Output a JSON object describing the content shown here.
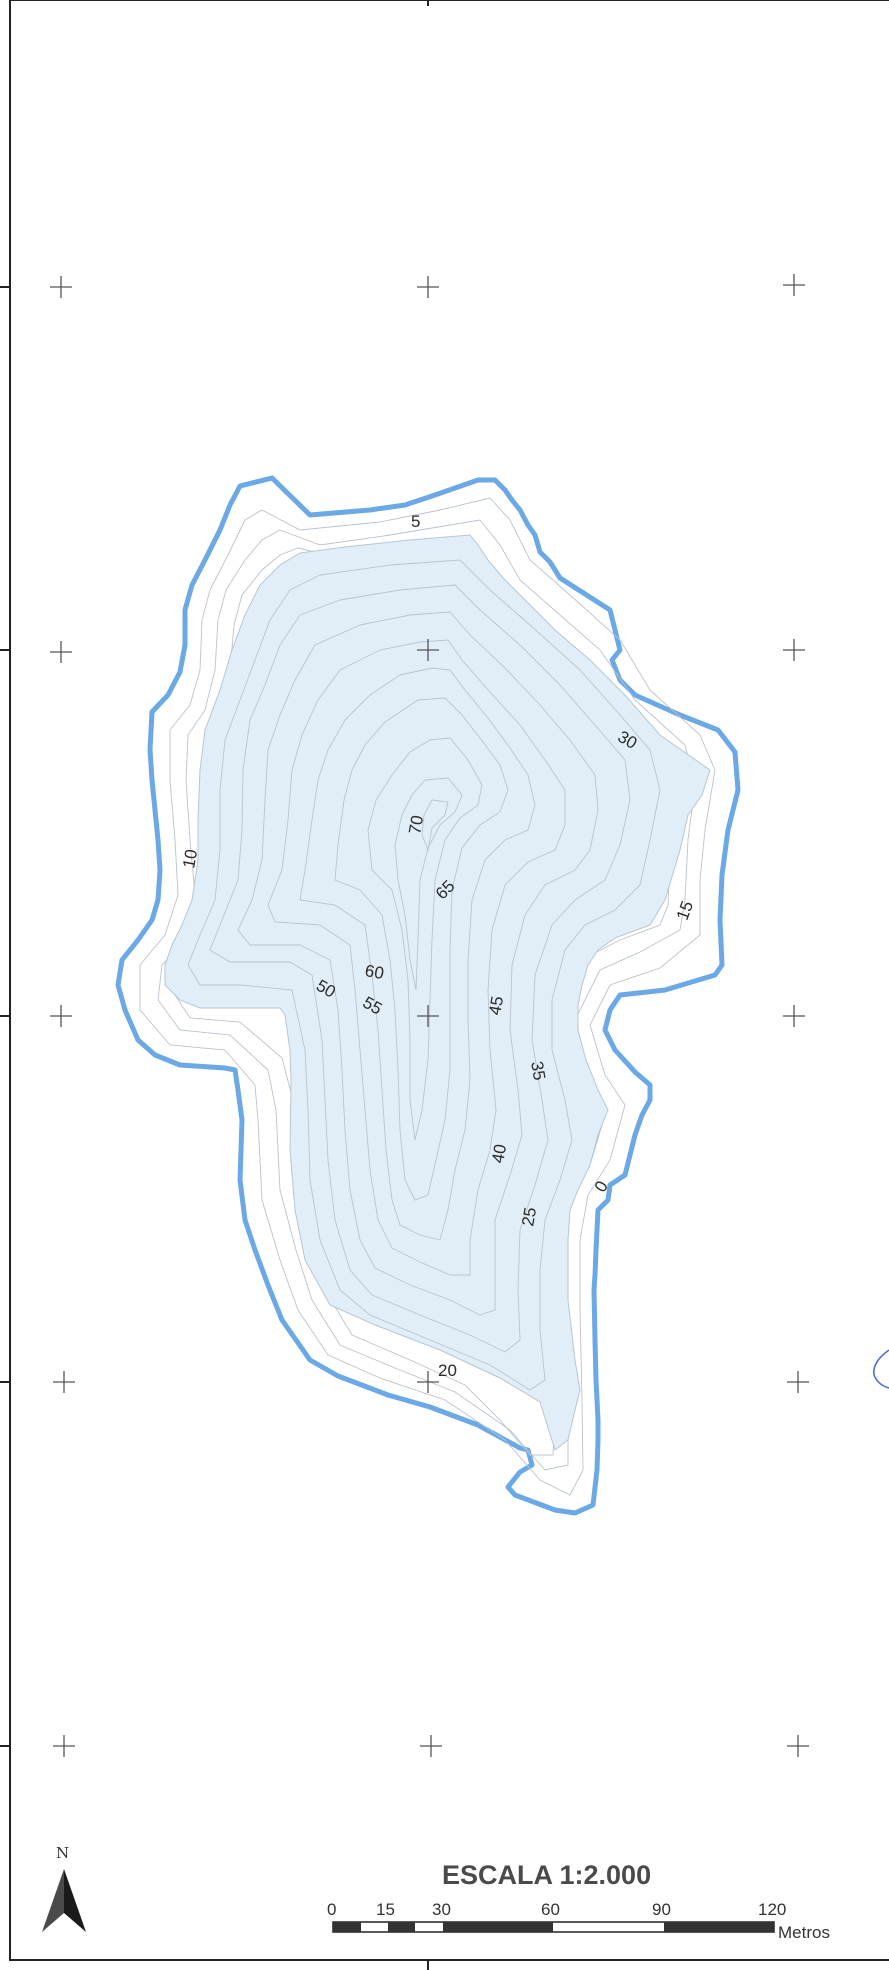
{
  "map": {
    "contour_labels": [
      "5",
      "30",
      "70",
      "10",
      "65",
      "15",
      "60",
      "50",
      "55",
      "45",
      "35",
      "40",
      "0",
      "25",
      "20"
    ]
  },
  "north_arrow": {
    "label": "N"
  },
  "scale_bar": {
    "title": "ESCALA 1:2.000",
    "ticks": [
      "0",
      "15",
      "30",
      "60",
      "90",
      "120"
    ],
    "unit": "Metros"
  },
  "colors": {
    "shoreline": "#6aa8e6",
    "deep_water": "#e1eef8",
    "contour_lines": "#b9c3cc",
    "frame": "#222222"
  },
  "icons": {
    "north_arrow": "north-arrow-icon",
    "grid_mark": "plus-cross-icon"
  }
}
